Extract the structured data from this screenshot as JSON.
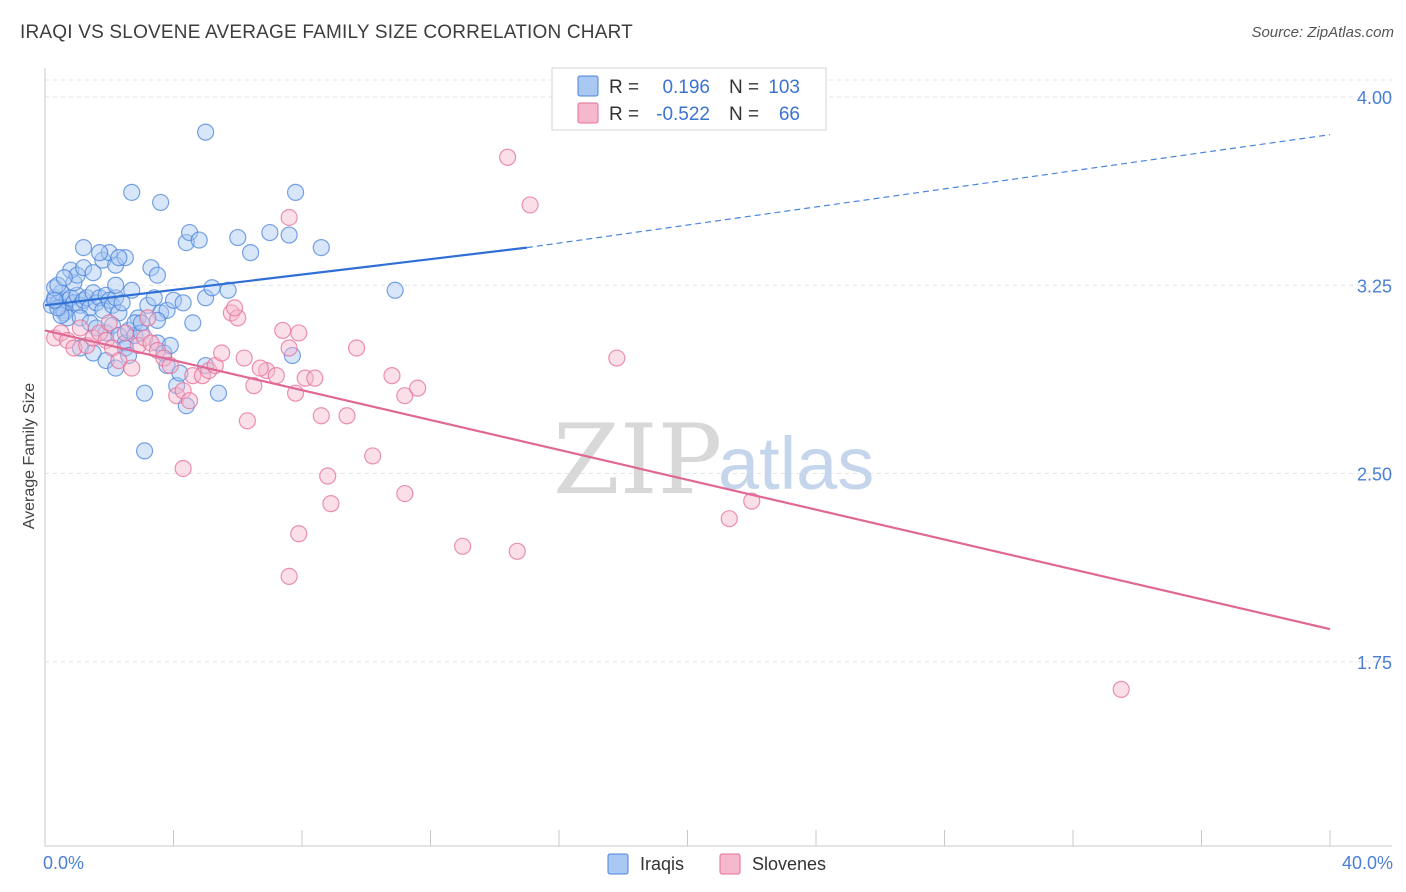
{
  "title": "IRAQI VS SLOVENE AVERAGE FAMILY SIZE CORRELATION CHART",
  "source": "Source: ZipAtlas.com",
  "watermark": {
    "zip": "ZIP",
    "atlas": "atlas"
  },
  "colors": {
    "iraqis": "#4a84dc",
    "iraqis_fill": "#a9c8f2",
    "slovenes": "#e66e98",
    "slovenes_fill": "#f5b8cc",
    "value_text": "#3b73d1",
    "label_text": "#333333",
    "grid": "#e3e3e3"
  },
  "legend_top": [
    {
      "r_label": "R =",
      "r_value": "0.196",
      "n_label": "N =",
      "n_value": "103"
    },
    {
      "r_label": "R =",
      "r_value": "-0.522",
      "n_label": "N =",
      "n_value": "66"
    }
  ],
  "chart_data": {
    "type": "scatter",
    "title": "IRAQI VS SLOVENE AVERAGE FAMILY SIZE CORRELATION CHART",
    "xlabel": "",
    "ylabel": "Average Family Size",
    "xlim": [
      0,
      40
    ],
    "ylim": [
      1.0,
      4.0
    ],
    "x_tick_labels": [
      "0.0%",
      "40.0%"
    ],
    "y_ticks": [
      1.75,
      2.5,
      3.25,
      4.0
    ],
    "y_tick_labels": [
      "1.75",
      "2.50",
      "3.25",
      "4.00"
    ],
    "grid": true,
    "legend_position": "bottom-center",
    "series": [
      {
        "name": "Iraqis",
        "r": 0.196,
        "n": 103,
        "trend": {
          "x0": 0,
          "y0": 3.17,
          "x1": 15.0,
          "y1": 3.4,
          "dashed_to_x": 40,
          "dashed_to_y": 3.85
        },
        "points": [
          [
            0.2,
            3.17
          ],
          [
            0.3,
            3.2
          ],
          [
            0.4,
            3.18
          ],
          [
            0.5,
            3.22
          ],
          [
            0.6,
            3.15
          ],
          [
            0.7,
            3.19
          ],
          [
            0.3,
            3.24
          ],
          [
            0.5,
            3.16
          ],
          [
            0.8,
            3.2
          ],
          [
            0.9,
            3.18
          ],
          [
            1.0,
            3.21
          ],
          [
            1.1,
            3.17
          ],
          [
            1.2,
            3.19
          ],
          [
            0.6,
            3.14
          ],
          [
            0.7,
            3.12
          ],
          [
            0.9,
            3.26
          ],
          [
            1.3,
            3.2
          ],
          [
            1.4,
            3.16
          ],
          [
            1.5,
            3.22
          ],
          [
            1.6,
            3.18
          ],
          [
            1.7,
            3.2
          ],
          [
            1.8,
            3.15
          ],
          [
            1.9,
            3.21
          ],
          [
            2.0,
            3.19
          ],
          [
            2.1,
            3.17
          ],
          [
            2.2,
            3.2
          ],
          [
            2.3,
            3.14
          ],
          [
            2.4,
            3.18
          ],
          [
            0.8,
            3.31
          ],
          [
            1.0,
            3.29
          ],
          [
            1.2,
            3.32
          ],
          [
            1.5,
            3.3
          ],
          [
            1.8,
            3.35
          ],
          [
            2.0,
            3.38
          ],
          [
            2.2,
            3.33
          ],
          [
            2.5,
            3.36
          ],
          [
            1.2,
            3.4
          ],
          [
            1.7,
            3.38
          ],
          [
            2.3,
            3.36
          ],
          [
            1.1,
            3.12
          ],
          [
            1.4,
            3.1
          ],
          [
            1.6,
            3.08
          ],
          [
            1.9,
            3.06
          ],
          [
            2.1,
            3.09
          ],
          [
            2.3,
            3.05
          ],
          [
            2.5,
            3.02
          ],
          [
            2.6,
            3.07
          ],
          [
            2.8,
            3.05
          ],
          [
            2.9,
            3.12
          ],
          [
            1.1,
            3.0
          ],
          [
            1.5,
            2.98
          ],
          [
            1.9,
            2.95
          ],
          [
            2.2,
            2.92
          ],
          [
            2.5,
            3.0
          ],
          [
            2.6,
            2.97
          ],
          [
            2.8,
            3.1
          ],
          [
            3.0,
            3.06
          ],
          [
            3.2,
            3.17
          ],
          [
            3.4,
            3.2
          ],
          [
            3.6,
            3.14
          ],
          [
            3.8,
            3.15
          ],
          [
            4.0,
            3.19
          ],
          [
            4.3,
            3.18
          ],
          [
            4.6,
            3.1
          ],
          [
            5.0,
            3.2
          ],
          [
            5.2,
            3.24
          ],
          [
            5.7,
            3.23
          ],
          [
            3.0,
            3.1
          ],
          [
            3.5,
            3.02
          ],
          [
            3.7,
            2.98
          ],
          [
            3.8,
            2.93
          ],
          [
            4.1,
            2.85
          ],
          [
            4.4,
            2.77
          ],
          [
            5.0,
            2.93
          ],
          [
            5.4,
            2.82
          ],
          [
            3.9,
            3.01
          ],
          [
            4.2,
            2.9
          ],
          [
            3.5,
            3.11
          ],
          [
            3.3,
            3.32
          ],
          [
            3.5,
            3.29
          ],
          [
            4.4,
            3.42
          ],
          [
            4.5,
            3.46
          ],
          [
            4.8,
            3.43
          ],
          [
            6.0,
            3.44
          ],
          [
            6.4,
            3.38
          ],
          [
            7.0,
            3.46
          ],
          [
            7.6,
            3.45
          ],
          [
            8.6,
            3.4
          ],
          [
            7.8,
            3.62
          ],
          [
            3.6,
            3.58
          ],
          [
            2.7,
            3.62
          ],
          [
            5.0,
            3.86
          ],
          [
            10.9,
            3.23
          ],
          [
            3.1,
            2.82
          ],
          [
            3.1,
            2.59
          ],
          [
            7.7,
            2.97
          ],
          [
            0.4,
            3.25
          ],
          [
            0.6,
            3.28
          ],
          [
            0.5,
            3.13
          ],
          [
            0.4,
            3.16
          ],
          [
            0.3,
            3.19
          ],
          [
            2.2,
            3.25
          ],
          [
            2.7,
            3.23
          ]
        ]
      },
      {
        "name": "Slovenes",
        "r": -0.522,
        "n": 66,
        "trend": {
          "x0": 0,
          "y0": 3.07,
          "x1": 40,
          "y1": 1.88
        },
        "points": [
          [
            0.3,
            3.04
          ],
          [
            0.5,
            3.06
          ],
          [
            0.7,
            3.03
          ],
          [
            0.9,
            3.0
          ],
          [
            1.1,
            3.08
          ],
          [
            1.3,
            3.01
          ],
          [
            1.5,
            3.04
          ],
          [
            1.7,
            3.06
          ],
          [
            1.9,
            3.03
          ],
          [
            2.1,
            3.0
          ],
          [
            2.3,
            2.95
          ],
          [
            2.5,
            3.06
          ],
          [
            2.7,
            2.92
          ],
          [
            2.9,
            3.01
          ],
          [
            3.1,
            3.04
          ],
          [
            3.3,
            3.02
          ],
          [
            3.5,
            2.99
          ],
          [
            3.7,
            2.96
          ],
          [
            3.9,
            2.93
          ],
          [
            4.1,
            2.81
          ],
          [
            4.3,
            2.83
          ],
          [
            4.5,
            2.79
          ],
          [
            4.6,
            2.89
          ],
          [
            4.9,
            2.89
          ],
          [
            5.1,
            2.91
          ],
          [
            5.3,
            2.93
          ],
          [
            5.5,
            2.98
          ],
          [
            5.8,
            3.14
          ],
          [
            6.0,
            3.12
          ],
          [
            6.2,
            2.96
          ],
          [
            6.5,
            2.85
          ],
          [
            6.9,
            2.91
          ],
          [
            7.2,
            2.89
          ],
          [
            7.4,
            3.07
          ],
          [
            7.6,
            3.0
          ],
          [
            7.8,
            2.82
          ],
          [
            8.1,
            2.88
          ],
          [
            8.4,
            2.88
          ],
          [
            8.6,
            2.73
          ],
          [
            9.4,
            2.73
          ],
          [
            9.7,
            3.0
          ],
          [
            10.2,
            2.57
          ],
          [
            10.8,
            2.89
          ],
          [
            11.2,
            2.81
          ],
          [
            11.6,
            2.84
          ],
          [
            6.3,
            2.71
          ],
          [
            4.3,
            2.52
          ],
          [
            8.8,
            2.49
          ],
          [
            8.9,
            2.38
          ],
          [
            7.9,
            2.26
          ],
          [
            7.6,
            2.09
          ],
          [
            11.2,
            2.42
          ],
          [
            13.0,
            2.21
          ],
          [
            14.7,
            2.19
          ],
          [
            15.1,
            3.57
          ],
          [
            14.4,
            3.76
          ],
          [
            7.6,
            3.52
          ],
          [
            17.8,
            2.96
          ],
          [
            21.3,
            2.32
          ],
          [
            22.0,
            2.39
          ],
          [
            33.5,
            1.64
          ],
          [
            5.9,
            3.16
          ],
          [
            7.9,
            3.06
          ],
          [
            3.2,
            3.12
          ],
          [
            2.0,
            3.1
          ],
          [
            6.7,
            2.92
          ]
        ]
      }
    ]
  },
  "legend_bottom": [
    {
      "label": "Iraqis"
    },
    {
      "label": "Slovenes"
    }
  ]
}
